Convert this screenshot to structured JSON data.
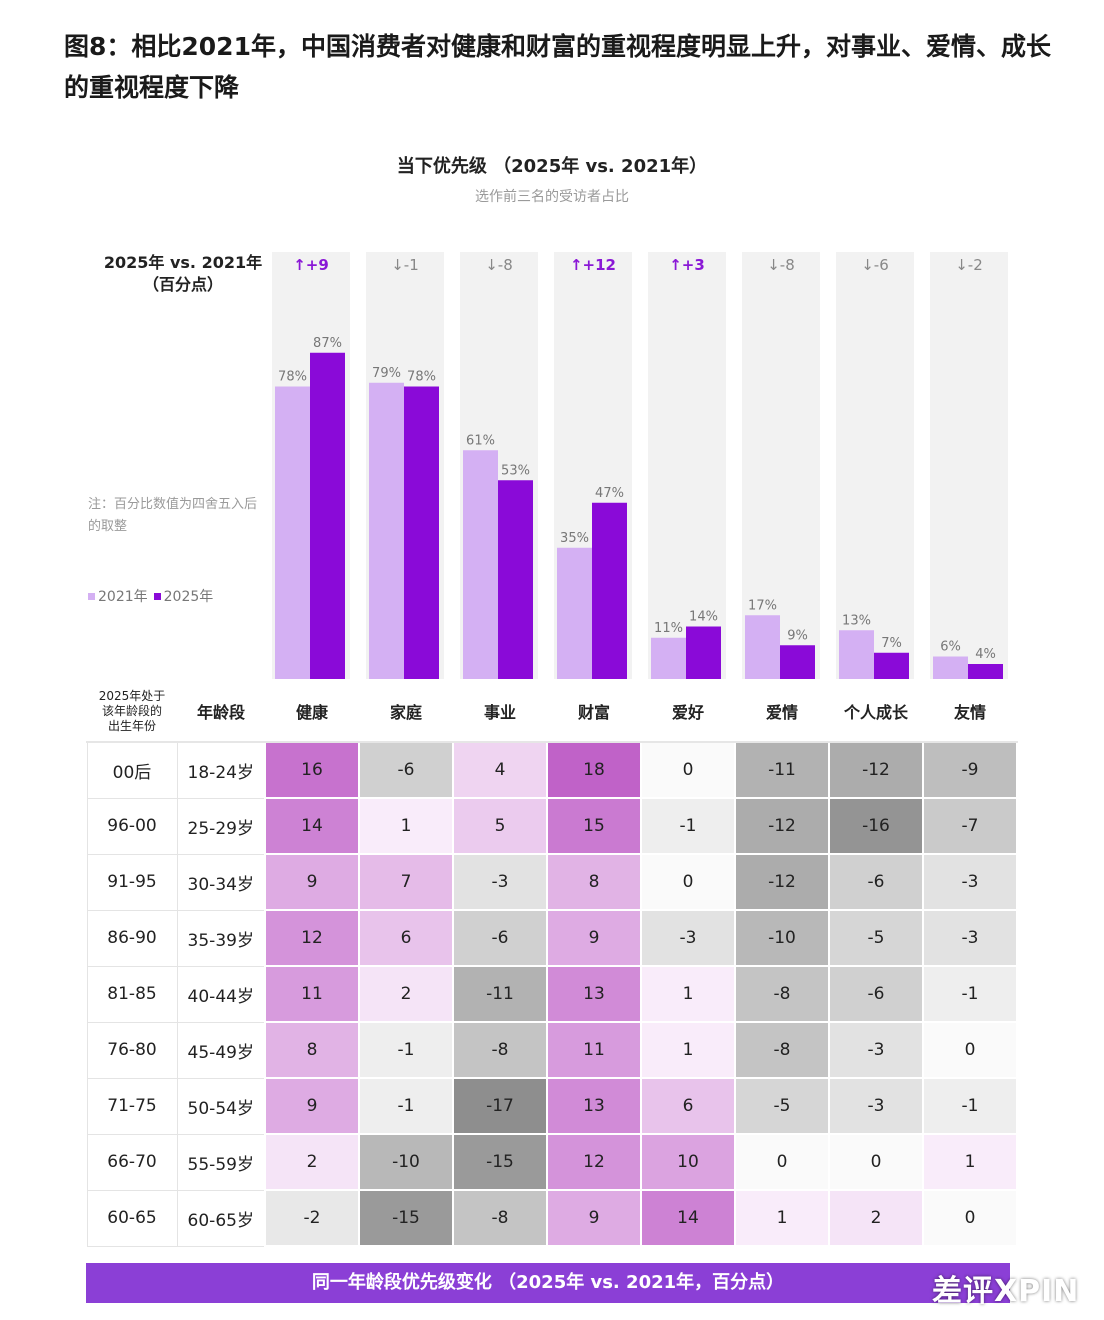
{
  "figure_title": "图8：相比2021年，中国消费者对健康和财富的重视程度明显上升，对事业、爱情、成长的重视程度下降",
  "chart_data": [
    {
      "type": "bar",
      "title": "当下优先级 （2025年 vs. 2021年）",
      "subtitle": "选作前三名的受访者占比",
      "categories": [
        "健康",
        "家庭",
        "事业",
        "财富",
        "爱好",
        "爱情",
        "个人成长",
        "友情"
      ],
      "series": [
        {
          "name": "2021年",
          "values": [
            78,
            79,
            61,
            35,
            11,
            17,
            13,
            6
          ],
          "labels": [
            "78%",
            "79%",
            "61%",
            "35%",
            "11%",
            "17%",
            "13%",
            "6%"
          ]
        },
        {
          "name": "2025年",
          "values": [
            87,
            78,
            53,
            47,
            14,
            9,
            7,
            4
          ],
          "labels": [
            "87%",
            "78%",
            "53%",
            "47%",
            "14%",
            "9%",
            "7%",
            "4%"
          ]
        }
      ],
      "diff_header": [
        "2025年 vs. 2021年",
        "（百分点）"
      ],
      "diff_labels": [
        "↑+9",
        "↓-1",
        "↓-8",
        "↑+12",
        "↑+3",
        "↓-8",
        "↓-6",
        "↓-2"
      ],
      "diff_up": [
        true,
        false,
        false,
        true,
        true,
        false,
        false,
        false
      ],
      "ylim": [
        0,
        100
      ],
      "legend": "left",
      "note": "注：百分比数值为四舍五入后的取整",
      "colors": {
        "2021": "#d4b0f3",
        "2025": "#8a0ad8",
        "track": "#f2f2f2",
        "up": "#8a18d6",
        "down": "#888888"
      }
    },
    {
      "type": "heatmap",
      "title": "同一年龄段优先级变化 （2025年 vs. 2021年，百分点）",
      "header_col1": [
        "2025年处于",
        "该年龄段的",
        "出生年份"
      ],
      "header_col2": "年龄段",
      "columns": [
        "健康",
        "家庭",
        "事业",
        "财富",
        "爱好",
        "爱情",
        "个人成长",
        "友情"
      ],
      "birth_years": [
        "00后",
        "96-00",
        "91-95",
        "86-90",
        "81-85",
        "76-80",
        "71-75",
        "66-70",
        "60-65"
      ],
      "age_groups": [
        "18-24岁",
        "25-29岁",
        "30-34岁",
        "35-39岁",
        "40-44岁",
        "45-49岁",
        "50-54岁",
        "55-59岁",
        "60-65岁"
      ],
      "values": [
        [
          16,
          -6,
          4,
          18,
          0,
          -11,
          -12,
          -9
        ],
        [
          14,
          1,
          5,
          15,
          -1,
          -12,
          -16,
          -7
        ],
        [
          9,
          7,
          -3,
          8,
          0,
          -12,
          -6,
          -3
        ],
        [
          12,
          6,
          -6,
          9,
          -3,
          -10,
          -5,
          -3
        ],
        [
          11,
          2,
          -11,
          13,
          1,
          -8,
          -6,
          -1
        ],
        [
          8,
          -1,
          -8,
          11,
          1,
          -8,
          -3,
          0
        ],
        [
          9,
          -1,
          -17,
          13,
          6,
          -5,
          -3,
          -1
        ],
        [
          2,
          -10,
          -15,
          12,
          10,
          0,
          0,
          1
        ],
        [
          -2,
          -15,
          -8,
          9,
          14,
          1,
          2,
          0
        ]
      ],
      "colors": {
        "positive": "#c062c8",
        "negative": "#8e8e8e"
      }
    }
  ],
  "watermark": "差评XPIN"
}
